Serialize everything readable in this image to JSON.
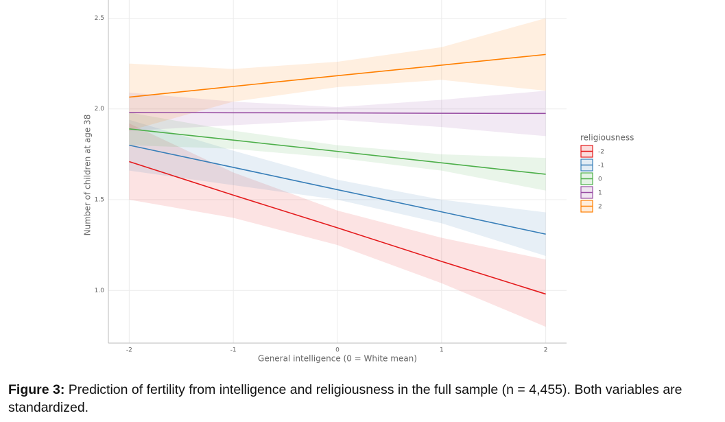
{
  "chart_data": {
    "type": "line-ribbon",
    "x_label": "General intelligence (0 = White mean)",
    "y_label": "Number of children at age 38",
    "legend_title": "religiousness",
    "x": [
      -2,
      -1,
      0,
      1,
      2
    ],
    "xlim": [
      -2.2,
      2.2
    ],
    "ylim": [
      0.71,
      2.6
    ],
    "xticks": [
      -2,
      -1,
      0,
      1,
      2
    ],
    "yticks": [
      {
        "value": 1,
        "label": "1.0"
      },
      1.5,
      {
        "value": 2,
        "label": "2.0"
      },
      2.5
    ],
    "grid": true,
    "series": [
      {
        "name": "-2",
        "color": "#e41a1c",
        "values": [
          1.71,
          1.525,
          1.345,
          1.16,
          0.98
        ],
        "lower": [
          1.5,
          1.4,
          1.25,
          1.04,
          0.8
        ],
        "upper": [
          1.92,
          1.65,
          1.44,
          1.29,
          1.17
        ]
      },
      {
        "name": "-1",
        "color": "#377eb8",
        "values": [
          1.8,
          1.678,
          1.555,
          1.433,
          1.31
        ],
        "lower": [
          1.66,
          1.58,
          1.5,
          1.37,
          1.19
        ],
        "upper": [
          1.94,
          1.77,
          1.61,
          1.5,
          1.43
        ]
      },
      {
        "name": "0",
        "color": "#4daf4a",
        "values": [
          1.89,
          1.828,
          1.766,
          1.703,
          1.64
        ],
        "lower": [
          1.8,
          1.78,
          1.73,
          1.66,
          1.55
        ],
        "upper": [
          1.98,
          1.88,
          1.8,
          1.75,
          1.73
        ]
      },
      {
        "name": "1",
        "color": "#984ea3",
        "values": [
          1.98,
          1.979,
          1.978,
          1.976,
          1.975
        ],
        "lower": [
          1.88,
          1.91,
          1.94,
          1.9,
          1.85
        ],
        "upper": [
          2.09,
          2.04,
          2.01,
          2.05,
          2.1
        ]
      },
      {
        "name": "2",
        "color": "#ff7f00",
        "values": [
          2.065,
          2.124,
          2.183,
          2.241,
          2.3
        ],
        "lower": [
          1.88,
          2.04,
          2.12,
          2.16,
          2.1
        ],
        "upper": [
          2.25,
          2.22,
          2.26,
          2.34,
          2.5
        ]
      }
    ]
  },
  "caption": {
    "label": "Figure 3:",
    "text": "Prediction of fertility from intelligence and religiousness in the full sample (n = 4,455). Both variables are standardized."
  }
}
